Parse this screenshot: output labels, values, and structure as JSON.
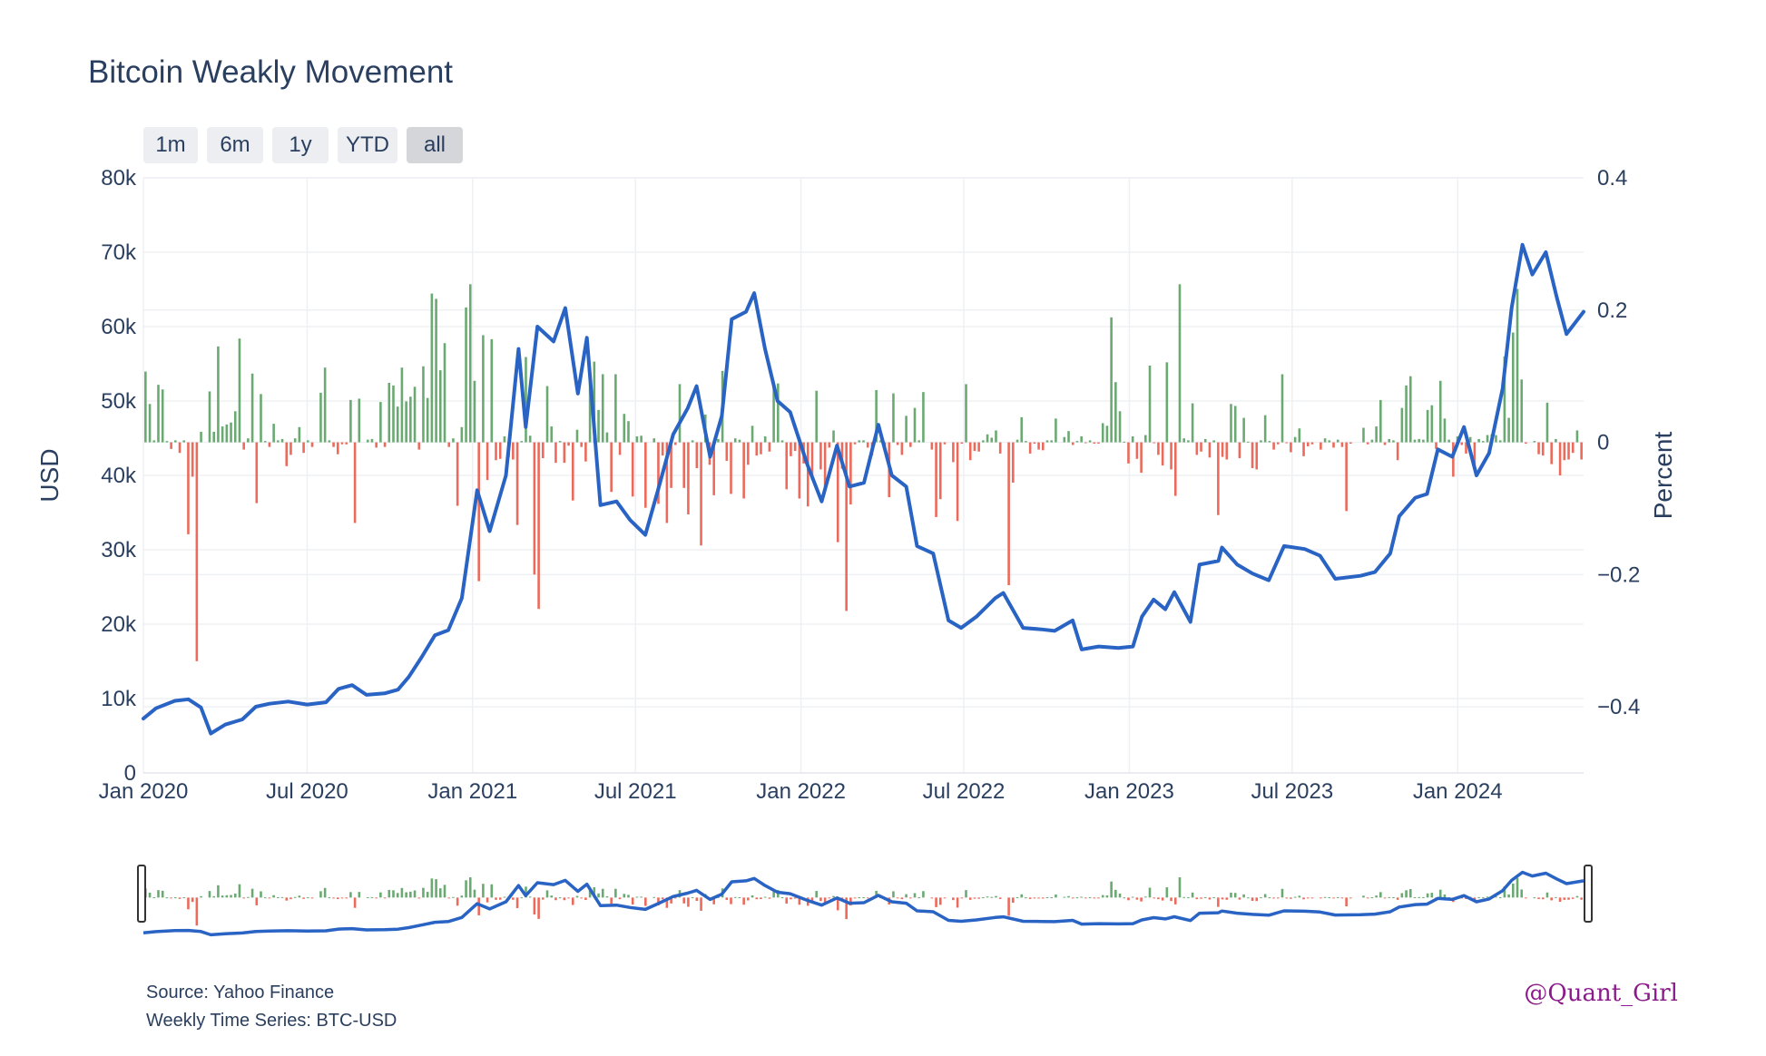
{
  "title": "Bitcoin Weakly Movement",
  "range_buttons": [
    {
      "label": "1m",
      "active": false
    },
    {
      "label": "6m",
      "active": false
    },
    {
      "label": "1y",
      "active": false
    },
    {
      "label": "YTD",
      "active": false
    },
    {
      "label": "all",
      "active": true
    }
  ],
  "footer": {
    "source": "Source: Yahoo Finance",
    "series": "Weekly Time Series: BTC-USD",
    "watermark": "@Quant_Girl"
  },
  "chart_data": {
    "type": "line",
    "x_start": "2020-01-01",
    "x_end": "2024-05-20",
    "xticks": [
      {
        "label": "Jan 2020",
        "date": "2020-01-01"
      },
      {
        "label": "Jul 2020",
        "date": "2020-07-01"
      },
      {
        "label": "Jan 2021",
        "date": "2021-01-01"
      },
      {
        "label": "Jul 2021",
        "date": "2021-07-01"
      },
      {
        "label": "Jan 2022",
        "date": "2022-01-01"
      },
      {
        "label": "Jul 2022",
        "date": "2022-07-01"
      },
      {
        "label": "Jan 2023",
        "date": "2023-01-01"
      },
      {
        "label": "Jul 2023",
        "date": "2023-07-01"
      },
      {
        "label": "Jan 2024",
        "date": "2024-01-01"
      }
    ],
    "y_left": {
      "title": "USD",
      "range": [
        0,
        80000
      ],
      "ticks": [
        {
          "label": "0",
          "v": 0
        },
        {
          "label": "10k",
          "v": 10000
        },
        {
          "label": "20k",
          "v": 20000
        },
        {
          "label": "30k",
          "v": 30000
        },
        {
          "label": "40k",
          "v": 40000
        },
        {
          "label": "50k",
          "v": 50000
        },
        {
          "label": "60k",
          "v": 60000
        },
        {
          "label": "70k",
          "v": 70000
        },
        {
          "label": "80k",
          "v": 80000
        }
      ]
    },
    "y_right": {
      "title": "Percent",
      "range": [
        -0.5,
        0.4
      ],
      "ticks": [
        {
          "label": "−0.4",
          "v": -0.4
        },
        {
          "label": "−0.2",
          "v": -0.2
        },
        {
          "label": "0",
          "v": 0
        },
        {
          "label": "0.2",
          "v": 0.2
        },
        {
          "label": "0.4",
          "v": 0.4
        }
      ]
    },
    "grid": true,
    "colors": {
      "price": "#2963c4",
      "up": "#6aaa72",
      "down": "#ec6a5b"
    },
    "price_points": [
      [
        "2020-01-01",
        7300
      ],
      [
        "2020-01-15",
        8700
      ],
      [
        "2020-02-05",
        9700
      ],
      [
        "2020-02-20",
        9900
      ],
      [
        "2020-03-05",
        8800
      ],
      [
        "2020-03-16",
        5300
      ],
      [
        "2020-04-01",
        6500
      ],
      [
        "2020-04-20",
        7200
      ],
      [
        "2020-05-05",
        8900
      ],
      [
        "2020-05-20",
        9300
      ],
      [
        "2020-06-10",
        9600
      ],
      [
        "2020-07-01",
        9200
      ],
      [
        "2020-07-22",
        9500
      ],
      [
        "2020-08-05",
        11300
      ],
      [
        "2020-08-20",
        11800
      ],
      [
        "2020-09-05",
        10500
      ],
      [
        "2020-09-25",
        10700
      ],
      [
        "2020-10-10",
        11200
      ],
      [
        "2020-10-22",
        12900
      ],
      [
        "2020-11-05",
        15500
      ],
      [
        "2020-11-20",
        18500
      ],
      [
        "2020-12-05",
        19200
      ],
      [
        "2020-12-20",
        23500
      ],
      [
        "2021-01-06",
        38000
      ],
      [
        "2021-01-20",
        32500
      ],
      [
        "2021-02-07",
        40000
      ],
      [
        "2021-02-21",
        57000
      ],
      [
        "2021-03-01",
        46500
      ],
      [
        "2021-03-14",
        60000
      ],
      [
        "2021-04-01",
        58000
      ],
      [
        "2021-04-14",
        62500
      ],
      [
        "2021-04-28",
        51000
      ],
      [
        "2021-05-08",
        58500
      ],
      [
        "2021-05-23",
        36000
      ],
      [
        "2021-06-10",
        36500
      ],
      [
        "2021-06-25",
        34000
      ],
      [
        "2021-07-12",
        32000
      ],
      [
        "2021-07-26",
        38000
      ],
      [
        "2021-08-12",
        45500
      ],
      [
        "2021-08-28",
        49000
      ],
      [
        "2021-09-07",
        52000
      ],
      [
        "2021-09-22",
        42500
      ],
      [
        "2021-10-05",
        48000
      ],
      [
        "2021-10-16",
        61000
      ],
      [
        "2021-11-01",
        62000
      ],
      [
        "2021-11-10",
        64500
      ],
      [
        "2021-11-22",
        57000
      ],
      [
        "2021-12-06",
        50000
      ],
      [
        "2021-12-20",
        48500
      ],
      [
        "2022-01-08",
        41500
      ],
      [
        "2022-01-24",
        36500
      ],
      [
        "2022-02-10",
        44000
      ],
      [
        "2022-02-24",
        38500
      ],
      [
        "2022-03-12",
        39000
      ],
      [
        "2022-03-28",
        46800
      ],
      [
        "2022-04-12",
        40000
      ],
      [
        "2022-04-28",
        38500
      ],
      [
        "2022-05-10",
        30500
      ],
      [
        "2022-05-28",
        29500
      ],
      [
        "2022-06-14",
        20500
      ],
      [
        "2022-06-28",
        19500
      ],
      [
        "2022-07-15",
        21000
      ],
      [
        "2022-08-05",
        23500
      ],
      [
        "2022-08-14",
        24200
      ],
      [
        "2022-09-05",
        19500
      ],
      [
        "2022-09-25",
        19300
      ],
      [
        "2022-10-10",
        19100
      ],
      [
        "2022-10-30",
        20500
      ],
      [
        "2022-11-09",
        16600
      ],
      [
        "2022-11-28",
        17000
      ],
      [
        "2022-12-20",
        16800
      ],
      [
        "2023-01-05",
        17000
      ],
      [
        "2023-01-15",
        21000
      ],
      [
        "2023-01-28",
        23300
      ],
      [
        "2023-02-10",
        22000
      ],
      [
        "2023-02-20",
        24300
      ],
      [
        "2023-03-10",
        20300
      ],
      [
        "2023-03-20",
        28000
      ],
      [
        "2023-04-10",
        28500
      ],
      [
        "2023-04-14",
        30300
      ],
      [
        "2023-05-01",
        28000
      ],
      [
        "2023-05-18",
        26800
      ],
      [
        "2023-06-05",
        25900
      ],
      [
        "2023-06-22",
        30500
      ],
      [
        "2023-07-15",
        30100
      ],
      [
        "2023-08-01",
        29200
      ],
      [
        "2023-08-18",
        26100
      ],
      [
        "2023-09-15",
        26500
      ],
      [
        "2023-10-01",
        27000
      ],
      [
        "2023-10-18",
        29500
      ],
      [
        "2023-10-28",
        34500
      ],
      [
        "2023-11-15",
        37000
      ],
      [
        "2023-11-28",
        37500
      ],
      [
        "2023-12-10",
        43500
      ],
      [
        "2023-12-26",
        42500
      ],
      [
        "2024-01-08",
        46500
      ],
      [
        "2024-01-22",
        40000
      ],
      [
        "2024-02-05",
        43000
      ],
      [
        "2024-02-20",
        51700
      ],
      [
        "2024-03-01",
        62500
      ],
      [
        "2024-03-13",
        71000
      ],
      [
        "2024-03-24",
        67000
      ],
      [
        "2024-04-08",
        70000
      ],
      [
        "2024-04-20",
        64000
      ],
      [
        "2024-05-01",
        59000
      ],
      [
        "2024-05-20",
        62000
      ]
    ],
    "weekly_returns": [
      0.107,
      0.058,
      0.003,
      0.087,
      0.08,
      0.002,
      -0.01,
      0.003,
      -0.016,
      0.003,
      -0.139,
      -0.052,
      -0.331,
      0.016,
      0.0,
      0.077,
      0.016,
      0.145,
      0.024,
      0.027,
      0.03,
      0.047,
      0.157,
      -0.011,
      0.006,
      0.104,
      -0.092,
      0.073,
      0.002,
      -0.007,
      0.028,
      0.003,
      0.005,
      -0.036,
      -0.019,
      0.006,
      0.023,
      -0.016,
      0.003,
      -0.007,
      0.0,
      0.075,
      0.113,
      0.003,
      -0.007,
      -0.018,
      -0.003,
      -0.003,
      0.064,
      -0.122,
      0.066,
      0.0,
      0.004,
      0.005,
      -0.008,
      0.061,
      -0.007,
      0.09,
      0.086,
      0.054,
      0.113,
      0.062,
      0.069,
      0.084,
      -0.011,
      0.115,
      0.067,
      0.225,
      0.217,
      0.109,
      0.15,
      -0.007,
      0.006,
      -0.096,
      0.023,
      0.204,
      0.239,
      0.093,
      -0.21,
      0.162,
      -0.057,
      0.156,
      -0.027,
      -0.025,
      0.009,
      -0.022,
      -0.026,
      -0.125,
      0.002,
      0.129,
      0.01,
      -0.2,
      -0.252,
      -0.024,
      0.085,
      0.024,
      -0.031,
      0.002,
      -0.031,
      -0.005,
      -0.088,
      0.019,
      -0.007,
      -0.029,
      0.112,
      0.122,
      0.049,
      0.103,
      0.015,
      -0.075,
      0.103,
      -0.019,
      0.043,
      0.032,
      -0.082,
      0.009,
      0.01,
      -0.099,
      0.0,
      0.006,
      -0.093,
      -0.02,
      -0.122,
      -0.069,
      -0.004,
      0.088,
      -0.069,
      -0.109,
      0.003,
      -0.039,
      -0.156,
      0.042,
      -0.034,
      -0.08,
      0.005,
      0.108,
      -0.028,
      -0.078,
      0.006,
      0.004,
      -0.085,
      -0.034,
      0.025,
      -0.02,
      -0.018,
      0.009,
      -0.014,
      0.084,
      0.089,
      0.003,
      -0.071,
      -0.021,
      -0.013,
      -0.085,
      -0.032,
      -0.097,
      -0.057,
      0.078,
      -0.041,
      -0.074,
      -0.008,
      0.018,
      -0.151,
      -0.04,
      -0.255,
      -0.094,
      -0.003,
      0.003,
      0.003,
      -0.008,
      -0.02,
      0.079,
      0.003,
      -0.014,
      -0.083,
      0.074,
      -0.004,
      -0.019,
      0.04,
      -0.007,
      0.052,
      0.003,
      0.076,
      0.0,
      -0.011,
      -0.113,
      -0.086,
      -0.003,
      0.0,
      -0.03,
      -0.119,
      -0.002,
      0.088,
      -0.027,
      -0.013,
      -0.014,
      0.003,
      0.012,
      0.007,
      0.018,
      -0.017,
      0.0,
      -0.216,
      -0.061,
      0.004,
      0.038,
      0.002,
      -0.017,
      -0.002,
      -0.011,
      -0.012,
      0.003,
      0.003,
      0.036,
      0.0,
      0.008,
      0.017,
      -0.004,
      0.002,
      0.009,
      -0.001,
      0.003,
      -0.002,
      -0.002,
      0.029,
      0.025,
      0.189,
      0.091,
      0.047,
      0.001,
      -0.032,
      0.009,
      -0.025,
      -0.046,
      0.011,
      0.116,
      -0.001,
      -0.019,
      -0.035,
      0.121,
      -0.041,
      -0.081,
      0.239,
      0.006,
      0.003,
      0.059,
      -0.019,
      -0.014,
      0.005,
      -0.023,
      0.003,
      -0.11,
      -0.022,
      -0.026,
      0.058,
      0.055,
      -0.024,
      0.037,
      0.001,
      -0.039,
      -0.041,
      0.003,
      0.041,
      0.002,
      -0.011,
      -0.003,
      0.103,
      -0.001,
      -0.015,
      0.008,
      0.021,
      -0.021,
      -0.006,
      -0.003,
      0.0,
      -0.011,
      0.006,
      0.003,
      -0.008,
      0.004,
      -0.007,
      -0.104,
      -0.002,
      0.0,
      0.0,
      0.022,
      -0.003,
      0.004,
      0.024,
      0.064,
      -0.004,
      0.005,
      0.003,
      -0.027,
      0.052,
      0.086,
      0.1,
      0.004,
      0.005,
      0.004,
      0.049,
      0.056,
      -0.01,
      0.093,
      0.036,
      0.004,
      -0.052,
      0.009,
      -0.004,
      -0.017,
      0.008,
      -0.043,
      0.005,
      0.002,
      0.011,
      0.012,
      0.011,
      0.003,
      0.13,
      0.037,
      0.166,
      0.232,
      0.095,
      -0.002,
      0.0,
      0.002,
      -0.018,
      -0.02,
      0.06,
      -0.033,
      0.005,
      -0.05,
      -0.027,
      -0.026,
      -0.016,
      0.018,
      -0.026
    ]
  }
}
